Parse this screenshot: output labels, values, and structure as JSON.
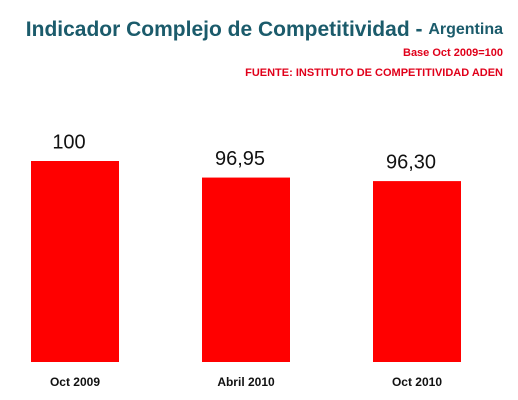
{
  "chart_data": {
    "type": "bar",
    "title": "Indicador Complejo de Competitividad -",
    "title_country": "Argentina",
    "notes": [
      "Base Oct 2009=100",
      "FUENTE: INSTITUTO DE COMPETITIVIDAD ADEN"
    ],
    "categories": [
      "Oct 2009",
      "Abril 2010",
      "Oct 2010"
    ],
    "values": [
      100,
      96.95,
      96.3
    ],
    "value_labels": [
      "100",
      "96,95",
      "96,30"
    ],
    "color": "#ff0000",
    "ylim": [
      63,
      100
    ]
  }
}
